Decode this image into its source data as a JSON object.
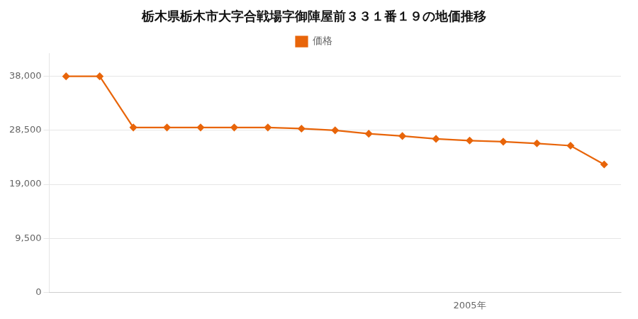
{
  "chart_data": {
    "type": "line",
    "title": "栃木県栃木市大字合戦場字御陣屋前３３１番１９の地価推移",
    "x": [
      1993,
      1994,
      1995,
      1996,
      1997,
      1998,
      1999,
      2000,
      2001,
      2002,
      2003,
      2004,
      2005,
      2006,
      2007,
      2008,
      2009
    ],
    "series": [
      {
        "name": "価格",
        "color": "#e8650a",
        "marker": "diamond",
        "line_style": "solid",
        "values": [
          38000,
          38000,
          29000,
          29000,
          29000,
          29000,
          29000,
          28800,
          28500,
          27900,
          27500,
          27000,
          26700,
          26500,
          26200,
          25800,
          22500
        ]
      }
    ],
    "xlim": [
      1992.5,
      2009.5
    ],
    "xticks": [
      {
        "value": 2005,
        "label": "2005年"
      }
    ],
    "ylim": [
      0,
      42000
    ],
    "yticks": [
      0,
      {
        "value": 9500,
        "label": "9,500"
      },
      {
        "value": 19000,
        "label": "19,000"
      },
      {
        "value": 28500,
        "label": "28,500"
      },
      {
        "value": 38000,
        "label": "38,000"
      }
    ],
    "grid": "y",
    "legend": "top"
  }
}
